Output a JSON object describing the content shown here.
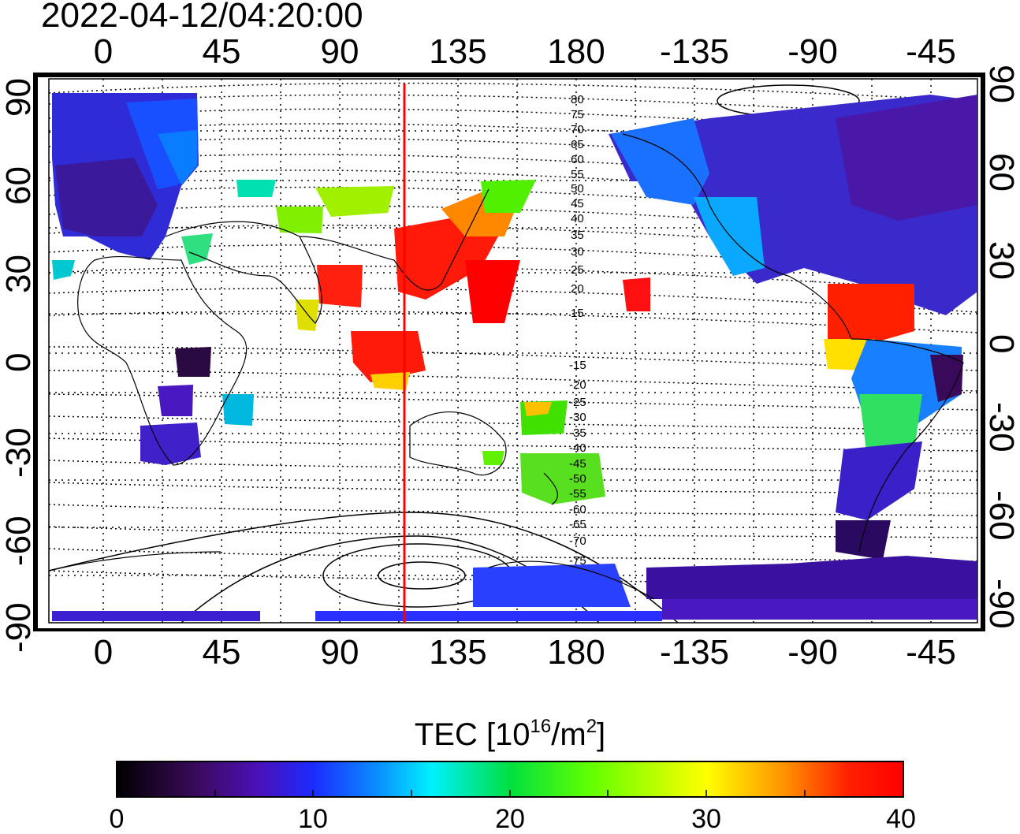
{
  "timestamp": "2022-04-12/04:20:00",
  "map": {
    "top_ticks": [
      "0",
      "45",
      "90",
      "135",
      "180",
      "-135",
      "-90",
      "-45"
    ],
    "bottom_ticks": [
      "0",
      "45",
      "90",
      "135",
      "180",
      "-135",
      "-90",
      "-45"
    ],
    "left_ticks": [
      "90",
      "60",
      "30",
      "0",
      "-30",
      "-60",
      "-90"
    ],
    "right_ticks": [
      "90",
      "60",
      "30",
      "0",
      "-30",
      "-60",
      "-90"
    ],
    "contour_labels_north": [
      "80",
      "75",
      "70",
      "65",
      "60",
      "55",
      "50",
      "45",
      "40",
      "35",
      "30",
      "25",
      "20",
      "15"
    ],
    "contour_labels_south": [
      "-15",
      "-20",
      "-25",
      "-30",
      "-35",
      "-40",
      "-45",
      "-50",
      "-55",
      "-60",
      "-65",
      "-70",
      "-75"
    ],
    "terminator_color": "#ff0000"
  },
  "colorbar": {
    "title_prefix": "TEC  [10",
    "title_exp": "16",
    "title_mid": "/m",
    "title_exp2": "2",
    "title_suffix": "]",
    "tick_labels": [
      "0",
      "10",
      "20",
      "30",
      "40"
    ],
    "range": [
      0,
      40
    ],
    "colors": [
      "#000000",
      "#3a0a5a",
      "#4b10b8",
      "#1b2bff",
      "#0a8cff",
      "#00f0ff",
      "#00e040",
      "#60ff00",
      "#ffff00",
      "#ff9000",
      "#ff2000",
      "#ff0000"
    ]
  }
}
